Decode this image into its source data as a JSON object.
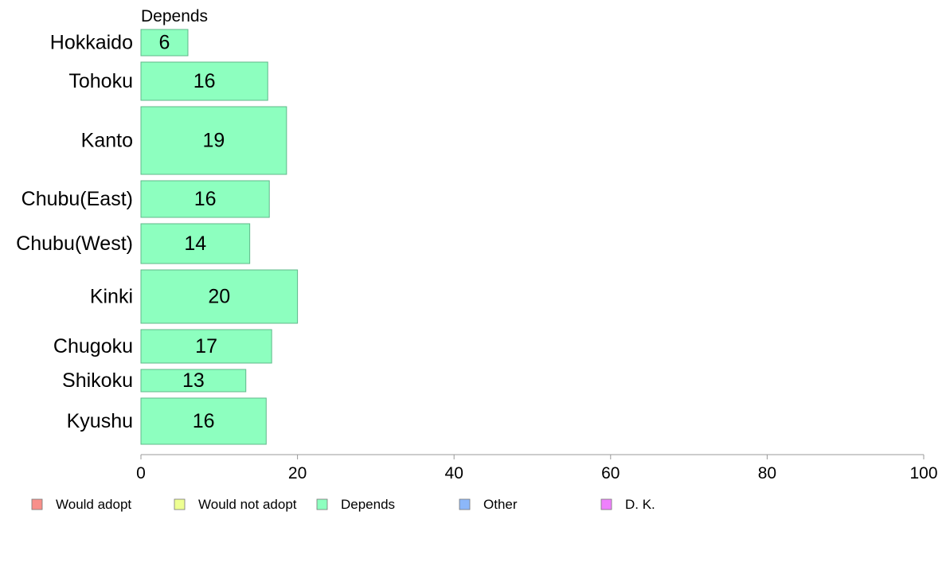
{
  "chart_data": {
    "type": "bar",
    "orientation": "horizontal",
    "series_title": "Depends",
    "categories": [
      "Hokkaido",
      "Tohoku",
      "Kanto",
      "Chubu(East)",
      "Chubu(West)",
      "Kinki",
      "Chugoku",
      "Shikoku",
      "Kyushu"
    ],
    "values": [
      6,
      16,
      19,
      16,
      14,
      20,
      17,
      13,
      16
    ],
    "bar_values": [
      6.0,
      16.2,
      18.6,
      16.4,
      13.9,
      20.0,
      16.7,
      13.4,
      16.0
    ],
    "xlim": [
      0,
      100
    ],
    "xticks": [
      "0",
      "20",
      "40",
      "60",
      "80",
      "100"
    ],
    "bar_color": "#8dffbf",
    "bar_edge_color": "#5fb88a",
    "legend": [
      {
        "label": "Would adopt",
        "color": "#f88f8a"
      },
      {
        "label": "Would not adopt",
        "color": "#eeff92"
      },
      {
        "label": "Depends",
        "color": "#8dffbf"
      },
      {
        "label": "Other",
        "color": "#8cb7f9"
      },
      {
        "label": "D. K.",
        "color": "#ef80fc"
      }
    ],
    "legend_position": "bottom",
    "grid": false
  }
}
